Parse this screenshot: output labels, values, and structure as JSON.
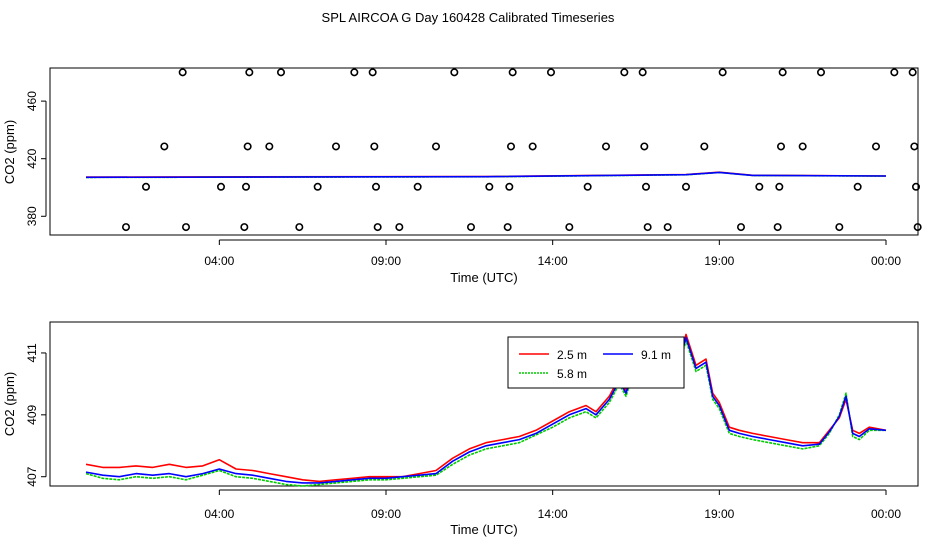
{
  "title": "SPL AIRCOA G  Day 160428  Calibrated Timeseries",
  "chart_data": [
    {
      "type": "scatter",
      "name": "top-panel",
      "xlabel": "Time (UTC)",
      "ylabel": "CO2 (ppm)",
      "xlim": [
        0.0,
        24.0
      ],
      "ylim": [
        367.0,
        483.0
      ],
      "x_ticks": [
        4,
        9,
        14,
        19,
        24
      ],
      "x_tick_labels": [
        "04:00",
        "09:00",
        "14:00",
        "19:00",
        "00:00"
      ],
      "y_ticks": [
        380,
        420,
        460
      ],
      "y_tick_labels": [
        "380",
        "420",
        "460"
      ],
      "points": [
        {
          "x": 1.2,
          "y": 372.5
        },
        {
          "x": 1.8,
          "y": 400.5
        },
        {
          "x": 2.35,
          "y": 428.5
        },
        {
          "x": 2.9,
          "y": 480.0
        },
        {
          "x": 3.0,
          "y": 372.5
        },
        {
          "x": 4.05,
          "y": 400.5
        },
        {
          "x": 4.75,
          "y": 372.5
        },
        {
          "x": 4.8,
          "y": 400.5
        },
        {
          "x": 4.85,
          "y": 428.5
        },
        {
          "x": 4.9,
          "y": 480.0
        },
        {
          "x": 5.5,
          "y": 428.5
        },
        {
          "x": 5.85,
          "y": 480.0
        },
        {
          "x": 6.4,
          "y": 372.5
        },
        {
          "x": 6.95,
          "y": 400.5
        },
        {
          "x": 7.5,
          "y": 428.5
        },
        {
          "x": 8.05,
          "y": 480.0
        },
        {
          "x": 8.6,
          "y": 480.0
        },
        {
          "x": 8.65,
          "y": 428.5
        },
        {
          "x": 8.7,
          "y": 400.5
        },
        {
          "x": 8.75,
          "y": 372.5
        },
        {
          "x": 9.4,
          "y": 372.5
        },
        {
          "x": 9.95,
          "y": 400.5
        },
        {
          "x": 10.5,
          "y": 428.5
        },
        {
          "x": 11.05,
          "y": 480.0
        },
        {
          "x": 11.55,
          "y": 372.5
        },
        {
          "x": 12.1,
          "y": 400.5
        },
        {
          "x": 12.65,
          "y": 372.5
        },
        {
          "x": 12.7,
          "y": 400.5
        },
        {
          "x": 12.75,
          "y": 428.5
        },
        {
          "x": 12.8,
          "y": 480.0
        },
        {
          "x": 13.4,
          "y": 428.5
        },
        {
          "x": 13.95,
          "y": 480.0
        },
        {
          "x": 14.5,
          "y": 372.5
        },
        {
          "x": 15.05,
          "y": 400.5
        },
        {
          "x": 15.6,
          "y": 428.5
        },
        {
          "x": 16.15,
          "y": 480.0
        },
        {
          "x": 16.7,
          "y": 480.0
        },
        {
          "x": 16.75,
          "y": 428.5
        },
        {
          "x": 16.8,
          "y": 400.5
        },
        {
          "x": 16.85,
          "y": 372.5
        },
        {
          "x": 17.45,
          "y": 372.5
        },
        {
          "x": 18.0,
          "y": 400.5
        },
        {
          "x": 18.55,
          "y": 428.5
        },
        {
          "x": 19.1,
          "y": 480.0
        },
        {
          "x": 19.65,
          "y": 372.5
        },
        {
          "x": 20.2,
          "y": 400.5
        },
        {
          "x": 20.75,
          "y": 372.5
        },
        {
          "x": 20.8,
          "y": 400.5
        },
        {
          "x": 20.85,
          "y": 428.5
        },
        {
          "x": 20.9,
          "y": 480.0
        },
        {
          "x": 21.5,
          "y": 428.5
        },
        {
          "x": 22.05,
          "y": 480.0
        },
        {
          "x": 22.6,
          "y": 372.5
        },
        {
          "x": 23.15,
          "y": 400.5
        },
        {
          "x": 23.7,
          "y": 428.5
        },
        {
          "x": 24.25,
          "y": 480.0
        },
        {
          "x": 24.8,
          "y": 480.0
        },
        {
          "x": 24.85,
          "y": 428.5
        },
        {
          "x": 24.9,
          "y": 400.5
        },
        {
          "x": 24.95,
          "y": 372.5
        }
      ],
      "series": [
        {
          "name": "2.5 m",
          "color": "#ff0000",
          "x": [
            0.0,
            12.0,
            18.0,
            19.0,
            20.0,
            24.0
          ],
          "y": [
            407.2,
            407.6,
            409.0,
            410.6,
            408.5,
            408.0
          ]
        },
        {
          "name": "5.8 m",
          "color": "#00cc00",
          "x": [
            0.0,
            12.0,
            18.0,
            19.0,
            20.0,
            24.0
          ],
          "y": [
            407.0,
            407.4,
            408.8,
            410.4,
            408.3,
            407.9
          ]
        },
        {
          "name": "9.1 m",
          "color": "#0000ff",
          "x": [
            0.0,
            12.0,
            18.0,
            19.0,
            20.0,
            24.0
          ],
          "y": [
            407.1,
            407.5,
            408.9,
            410.5,
            408.4,
            408.0
          ]
        }
      ]
    },
    {
      "type": "line",
      "name": "bottom-panel",
      "xlabel": "Time (UTC)",
      "ylabel": "CO2 (ppm)",
      "xlim": [
        0.0,
        24.0
      ],
      "ylim": [
        406.7,
        412.0
      ],
      "x_ticks": [
        4,
        9,
        14,
        19,
        24
      ],
      "x_tick_labels": [
        "04:00",
        "09:00",
        "14:00",
        "19:00",
        "00:00"
      ],
      "y_ticks": [
        407,
        409,
        411
      ],
      "y_tick_labels": [
        "407",
        "409",
        "411"
      ],
      "legend": [
        "2.5 m",
        "5.8 m",
        "9.1 m"
      ],
      "series": [
        {
          "name": "2.5 m",
          "color": "#ff0000",
          "x": [
            0.0,
            0.5,
            1.0,
            1.5,
            2.0,
            2.5,
            3.0,
            3.5,
            4.0,
            4.5,
            5.0,
            5.5,
            6.0,
            6.5,
            7.0,
            7.5,
            8.0,
            8.5,
            9.0,
            9.5,
            10.0,
            10.5,
            11.0,
            11.5,
            12.0,
            12.5,
            13.0,
            13.5,
            14.0,
            14.5,
            15.0,
            15.3,
            15.7,
            16.0,
            16.2,
            16.4,
            16.7,
            17.0,
            17.5,
            17.8,
            18.0,
            18.3,
            18.6,
            18.8,
            19.0,
            19.3,
            19.6,
            20.0,
            20.5,
            21.0,
            21.5,
            22.0,
            22.3,
            22.6,
            22.8,
            23.0,
            23.2,
            23.5,
            24.0
          ],
          "y": [
            407.4,
            407.3,
            407.3,
            407.35,
            407.3,
            407.4,
            407.3,
            407.35,
            407.55,
            407.25,
            407.2,
            407.1,
            407.0,
            406.9,
            406.85,
            406.9,
            406.95,
            407.0,
            407.0,
            407.0,
            407.1,
            407.2,
            407.6,
            407.9,
            408.1,
            408.2,
            408.3,
            408.5,
            408.8,
            409.1,
            409.3,
            409.1,
            409.6,
            410.2,
            409.8,
            410.5,
            410.9,
            410.6,
            410.4,
            410.8,
            411.6,
            410.6,
            410.8,
            409.7,
            409.4,
            408.6,
            408.5,
            408.4,
            408.3,
            408.2,
            408.1,
            408.1,
            408.5,
            408.9,
            409.5,
            408.5,
            408.4,
            408.6,
            408.5
          ]
        },
        {
          "name": "5.8 m",
          "color": "#00cc00",
          "x": [
            0.0,
            0.5,
            1.0,
            1.5,
            2.0,
            2.5,
            3.0,
            3.5,
            4.0,
            4.5,
            5.0,
            5.5,
            6.0,
            6.5,
            7.0,
            7.5,
            8.0,
            8.5,
            9.0,
            9.5,
            10.0,
            10.5,
            11.0,
            11.5,
            12.0,
            12.5,
            13.0,
            13.5,
            14.0,
            14.5,
            15.0,
            15.3,
            15.7,
            16.0,
            16.2,
            16.4,
            16.7,
            17.0,
            17.5,
            17.8,
            18.0,
            18.3,
            18.6,
            18.8,
            19.0,
            19.3,
            19.6,
            20.0,
            20.5,
            21.0,
            21.5,
            22.0,
            22.3,
            22.6,
            22.8,
            23.0,
            23.2,
            23.5,
            24.0
          ],
          "y": [
            407.1,
            406.95,
            406.9,
            407.0,
            406.95,
            407.0,
            406.9,
            407.05,
            407.2,
            407.0,
            406.95,
            406.85,
            406.75,
            406.7,
            406.75,
            406.8,
            406.85,
            406.9,
            406.9,
            406.95,
            407.0,
            407.05,
            407.4,
            407.7,
            407.9,
            408.0,
            408.1,
            408.35,
            408.6,
            408.9,
            409.1,
            408.9,
            409.4,
            410.0,
            409.6,
            410.3,
            410.7,
            410.5,
            410.3,
            410.6,
            411.4,
            410.4,
            410.6,
            409.5,
            409.2,
            408.4,
            408.3,
            408.2,
            408.1,
            408.0,
            407.9,
            408.0,
            408.4,
            409.0,
            409.7,
            408.3,
            408.2,
            408.5,
            408.5
          ]
        },
        {
          "name": "9.1 m",
          "color": "#0000ff",
          "x": [
            0.0,
            0.5,
            1.0,
            1.5,
            2.0,
            2.5,
            3.0,
            3.5,
            4.0,
            4.5,
            5.0,
            5.5,
            6.0,
            6.5,
            7.0,
            7.5,
            8.0,
            8.5,
            9.0,
            9.5,
            10.0,
            10.5,
            11.0,
            11.5,
            12.0,
            12.5,
            13.0,
            13.5,
            14.0,
            14.5,
            15.0,
            15.3,
            15.7,
            16.0,
            16.2,
            16.4,
            16.7,
            17.0,
            17.5,
            17.8,
            18.0,
            18.3,
            18.6,
            18.8,
            19.0,
            19.3,
            19.6,
            20.0,
            20.5,
            21.0,
            21.5,
            22.0,
            22.3,
            22.6,
            22.8,
            23.0,
            23.2,
            23.5,
            24.0
          ],
          "y": [
            407.15,
            407.05,
            407.0,
            407.1,
            407.05,
            407.1,
            407.0,
            407.1,
            407.25,
            407.1,
            407.05,
            406.95,
            406.85,
            406.8,
            406.8,
            406.85,
            406.9,
            406.95,
            406.95,
            407.0,
            407.05,
            407.1,
            407.5,
            407.8,
            408.0,
            408.1,
            408.2,
            408.4,
            408.7,
            409.0,
            409.2,
            409.0,
            409.5,
            410.1,
            409.7,
            410.4,
            410.8,
            410.55,
            410.35,
            410.7,
            411.5,
            410.5,
            410.7,
            409.6,
            409.3,
            408.5,
            408.4,
            408.3,
            408.2,
            408.1,
            408.0,
            408.05,
            408.45,
            408.95,
            409.6,
            408.4,
            408.3,
            408.55,
            408.5
          ]
        }
      ]
    }
  ]
}
